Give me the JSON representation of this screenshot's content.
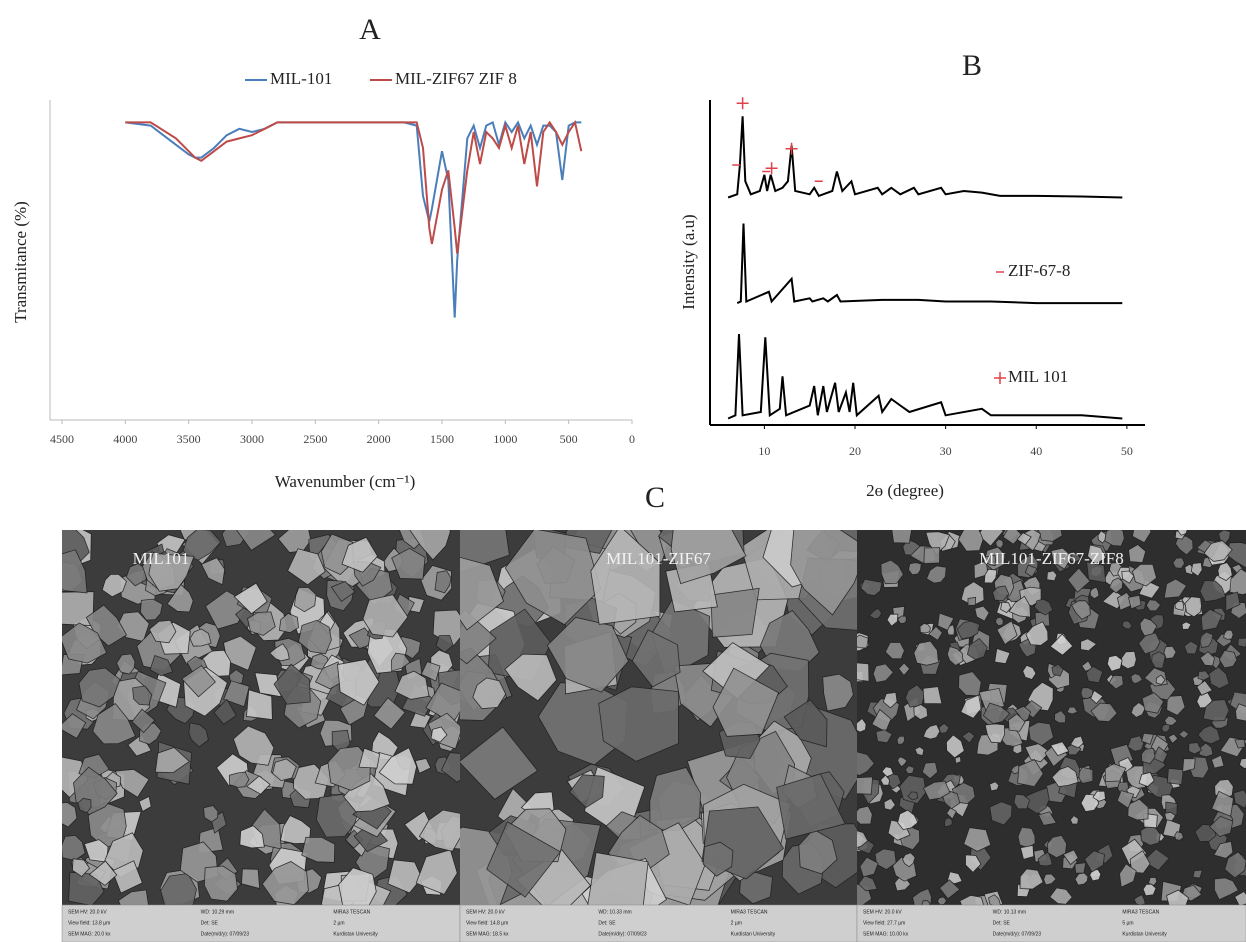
{
  "chart_data": [
    {
      "type": "line",
      "title": "A",
      "y_label": "Transmitance (%)",
      "x_label": "Wavenumber (cm⁻¹)",
      "x": [
        4000,
        3800,
        3600,
        3500,
        3450,
        3400,
        3300,
        3200,
        3100,
        3000,
        2900,
        2800,
        2500,
        2350,
        2300,
        2000,
        1800,
        1700,
        1650,
        1600,
        1580,
        1500,
        1450,
        1400,
        1380,
        1300,
        1250,
        1200,
        1150,
        1100,
        1050,
        1000,
        950,
        900,
        850,
        800,
        750,
        700,
        650,
        600,
        550,
        500,
        450,
        400
      ],
      "xlim": [
        4500,
        0
      ],
      "xticks": [
        4500,
        4000,
        3500,
        3000,
        2500,
        2000,
        1500,
        1000,
        500,
        0
      ],
      "ylim": [
        0,
        100
      ],
      "series": [
        {
          "name": "MIL-101",
          "color": "#4a7ebb",
          "values": [
            93,
            92,
            86,
            83,
            82,
            82,
            85,
            89,
            91,
            90,
            91,
            93,
            93,
            93,
            93,
            93,
            93,
            92,
            70,
            62,
            66,
            84,
            75,
            32,
            50,
            88,
            92,
            85,
            92,
            93,
            86,
            93,
            90,
            93,
            88,
            92,
            86,
            92,
            92,
            90,
            75,
            92,
            93,
            93
          ]
        },
        {
          "name": "MIL-ZIF67 ZIF 8",
          "color": "#be4b48",
          "values": [
            93,
            93,
            88,
            84,
            82,
            81,
            84,
            87,
            88,
            89,
            91,
            93,
            93,
            93,
            93,
            93,
            93,
            93,
            85,
            60,
            55,
            72,
            78,
            60,
            52,
            78,
            90,
            80,
            90,
            88,
            85,
            92,
            85,
            92,
            80,
            90,
            73,
            90,
            93,
            90,
            86,
            90,
            93,
            84
          ]
        }
      ]
    },
    {
      "type": "line",
      "title": "B",
      "y_label": "Intensity (a.u)",
      "x_label": "2ɵ (degree)",
      "xlim": [
        4,
        52
      ],
      "xticks": [
        10,
        20,
        30,
        40,
        50
      ],
      "ylim": [
        0,
        100
      ],
      "traces": [
        {
          "color": "#000000",
          "x": [
            6,
            7,
            7.3,
            7.6,
            7.9,
            8.5,
            9.5,
            10,
            10.3,
            10.7,
            11.2,
            12,
            12.6,
            13,
            13.4,
            15,
            15.5,
            16,
            17.5,
            18,
            18.6,
            19.6,
            20,
            22.5,
            23,
            24,
            25,
            26.5,
            27,
            29.5,
            30,
            32,
            34,
            36,
            40,
            45,
            49.5
          ],
          "values": [
            70,
            71,
            80,
            95,
            75,
            71,
            72,
            77,
            72,
            77,
            72,
            73,
            75,
            86,
            72,
            71,
            73,
            70.5,
            72,
            78,
            72,
            75,
            71,
            73,
            71,
            73,
            71,
            73,
            71,
            73,
            71,
            72,
            71.5,
            70.5,
            70.5,
            70.3,
            70
          ]
        },
        {
          "color": "#000000",
          "x": [
            7,
            7.4,
            7.7,
            8,
            10.5,
            10.8,
            13,
            13.3,
            15,
            15.3,
            16.5,
            17,
            18,
            18.4,
            23,
            27,
            30,
            35,
            40,
            49.5
          ],
          "values": [
            37.5,
            38,
            62,
            38,
            41,
            38,
            45,
            38,
            39,
            38,
            39,
            38,
            40,
            38,
            38.5,
            38.5,
            38,
            38,
            37.5,
            37.5
          ]
        },
        {
          "color": "#000000",
          "x": [
            6,
            6.8,
            7.2,
            7.6,
            9.6,
            10.1,
            10.6,
            11.7,
            12,
            12.4,
            15,
            15.5,
            15.9,
            16.5,
            16.9,
            17.8,
            18.2,
            19,
            19.4,
            19.8,
            20.2,
            22.6,
            23,
            24,
            25,
            26,
            29.5,
            30,
            34,
            35,
            40,
            45,
            49.5
          ],
          "values": [
            2,
            3,
            28,
            3,
            4,
            27,
            3,
            5,
            15,
            3,
            6,
            12,
            3,
            12,
            4,
            13,
            4,
            10,
            4,
            13,
            3,
            9,
            4,
            8,
            6,
            4,
            7,
            3,
            5,
            3,
            3,
            3,
            2
          ]
        }
      ],
      "series": [
        {
          "name": "ZIF-67-8",
          "marker": "-",
          "color": "#e0404a",
          "x": [
            6.9,
            10.2,
            16
          ],
          "values": [
            80,
            78,
            75
          ]
        },
        {
          "name": "MIL 101",
          "marker": "+",
          "color": "#e0404a",
          "x": [
            7.6,
            10.8,
            13
          ],
          "values": [
            99,
            79,
            85
          ]
        }
      ]
    }
  ],
  "sem": {
    "title": "C",
    "images": [
      {
        "label": "MIL101",
        "info": [
          [
            "SEM HV: 20.0 kV",
            "WD: 10.29 mm",
            "MIRA3 TESCAN"
          ],
          [
            "View field: 13.8 µm",
            "Det: SE",
            "2 µm"
          ],
          [
            "SEM MAG: 20.0 kx",
            "Date(m/d/y): 07/09/23",
            "Kurdistan University"
          ]
        ]
      },
      {
        "label": "MIL101-ZIF67",
        "info": [
          [
            "SEM HV: 20.0 kV",
            "WD: 10.33 mm",
            "MIRA3 TESCAN"
          ],
          [
            "View field: 14.8 µm",
            "Det: SE",
            "2 µm"
          ],
          [
            "SEM MAG: 18.5 kx",
            "Date(m/d/y): 07/09/23",
            "Kurdistan University"
          ]
        ]
      },
      {
        "label": "MIL101-ZIF67-ZIF8",
        "info": [
          [
            "SEM HV: 20.0 kV",
            "WD: 10.13 mm",
            "MIRA3 TESCAN"
          ],
          [
            "View field: 27.7 µm",
            "Det: SE",
            "5 µm"
          ],
          [
            "SEM MAG: 10.00 kx",
            "Date(m/d/y): 07/09/23",
            "Kurdistan University"
          ]
        ]
      }
    ]
  }
}
